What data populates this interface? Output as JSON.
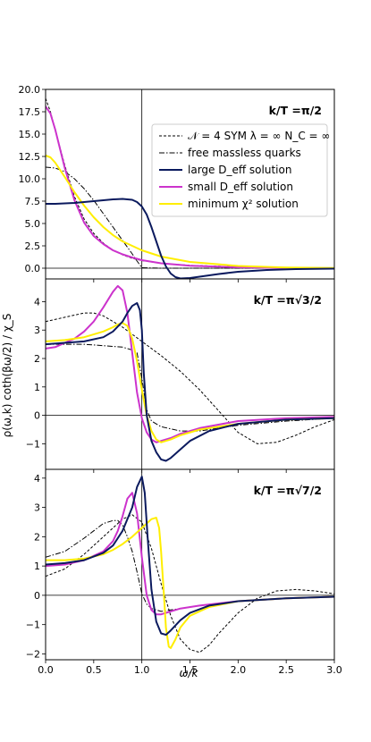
{
  "chart_data": {
    "type": "line",
    "xlabel": "ω/k",
    "ylabel": "ρ(ω,k) coth(βω/2) / χ_S",
    "xlim": [
      0,
      3.0
    ],
    "xticks": [
      "0.0",
      "0.5",
      "1.0",
      "1.5",
      "2.0",
      "2.5",
      "3.0"
    ],
    "vline_x": 1.0,
    "hline_y": 0,
    "legend": {
      "placement": "upper-right of top panel",
      "entries": [
        {
          "label": "𝒩 = 4 SYM λ = ∞ N_C = ∞",
          "color": "#000000",
          "style": "dashed"
        },
        {
          "label": "free massless quarks",
          "color": "#000000",
          "style": "dashdot"
        },
        {
          "label": "large D_eff solution",
          "color": "#0b1a5e",
          "style": "solid"
        },
        {
          "label": "small D_eff solution",
          "color": "#cc33cc",
          "style": "solid"
        },
        {
          "label": "minimum χ² solution",
          "color": "#ffee00",
          "style": "solid"
        }
      ]
    },
    "panels": [
      {
        "title": "k/T =π/2",
        "ylim": [
          -1.2,
          20.0
        ],
        "yticks": [
          0.0,
          2.5,
          5.0,
          7.5,
          10.0,
          12.5,
          15.0,
          17.5,
          20.0
        ],
        "ytick_labels": [
          "0.0",
          "2.5",
          "5.0",
          "7.5",
          "10.0",
          "12.5",
          "15.0",
          "17.5",
          "20.0"
        ],
        "series": [
          {
            "name": "𝒩 = 4 SYM λ = ∞ N_C = ∞",
            "x": [
              0,
              0.05,
              0.1,
              0.2,
              0.3,
              0.4,
              0.5,
              0.6,
              0.7,
              0.8,
              0.9,
              1.0,
              1.2,
              1.5,
              2.0,
              2.5,
              3.0
            ],
            "values": [
              19.0,
              17.5,
              15.5,
              11.5,
              8.0,
              5.5,
              3.9,
              2.8,
              2.0,
              1.5,
              1.1,
              0.85,
              0.55,
              0.32,
              0.15,
              0.07,
              0.04
            ]
          },
          {
            "name": "free massless quarks",
            "x": [
              0,
              0.1,
              0.2,
              0.3,
              0.4,
              0.5,
              0.6,
              0.7,
              0.8,
              0.9,
              0.95,
              1.0,
              1.2,
              1.5,
              2.0,
              2.5,
              3.0
            ],
            "values": [
              11.3,
              11.2,
              10.8,
              10.0,
              8.9,
              7.6,
              6.1,
              4.6,
              3.1,
              1.6,
              0.8,
              0.05,
              0.0,
              0.0,
              0.0,
              0.0,
              0.0
            ]
          },
          {
            "name": "large D_eff solution",
            "x": [
              0,
              0.1,
              0.2,
              0.3,
              0.4,
              0.5,
              0.6,
              0.7,
              0.8,
              0.9,
              0.95,
              1.0,
              1.05,
              1.1,
              1.15,
              1.2,
              1.25,
              1.3,
              1.35,
              1.4,
              1.5,
              1.6,
              1.8,
              2.0,
              2.3,
              2.6,
              3.0
            ],
            "values": [
              7.2,
              7.2,
              7.25,
              7.3,
              7.4,
              7.5,
              7.6,
              7.7,
              7.75,
              7.65,
              7.4,
              6.9,
              6.0,
              4.6,
              3.0,
              1.4,
              0.2,
              -0.6,
              -1.0,
              -1.15,
              -1.1,
              -0.95,
              -0.65,
              -0.4,
              -0.2,
              -0.1,
              -0.05
            ]
          },
          {
            "name": "small D_eff solution",
            "x": [
              0,
              0.05,
              0.1,
              0.2,
              0.3,
              0.4,
              0.5,
              0.6,
              0.7,
              0.8,
              0.9,
              1.0,
              1.2,
              1.5,
              2.0,
              2.5,
              3.0
            ],
            "values": [
              18.1,
              17.3,
              15.5,
              11.2,
              7.6,
              5.1,
              3.6,
              2.7,
              2.0,
              1.55,
              1.2,
              0.9,
              0.55,
              0.28,
              0.1,
              0.02,
              0.0
            ]
          },
          {
            "name": "minimum χ² solution",
            "x": [
              0,
              0.05,
              0.1,
              0.2,
              0.3,
              0.4,
              0.5,
              0.6,
              0.7,
              0.8,
              0.9,
              1.0,
              1.2,
              1.5,
              2.0,
              2.5,
              3.0
            ],
            "values": [
              12.6,
              12.4,
              11.8,
              10.2,
              8.5,
              7.0,
              5.7,
              4.6,
              3.7,
              3.0,
              2.5,
              2.0,
              1.3,
              0.7,
              0.25,
              0.08,
              0.02
            ]
          }
        ]
      },
      {
        "title": "k/T =π√3/2",
        "ylim": [
          -1.9,
          4.8
        ],
        "yticks": [
          -1,
          0,
          1,
          2,
          3,
          4
        ],
        "ytick_labels": [
          "−1",
          "0",
          "1",
          "2",
          "3",
          "4"
        ],
        "series": [
          {
            "name": "𝒩 = 4 SYM λ = ∞ N_C = ∞",
            "x": [
              0,
              0.2,
              0.4,
              0.5,
              0.6,
              0.8,
              1.0,
              1.2,
              1.4,
              1.6,
              1.8,
              2.0,
              2.2,
              2.4,
              2.6,
              2.8,
              3.0
            ],
            "values": [
              3.3,
              3.45,
              3.6,
              3.6,
              3.5,
              3.1,
              2.6,
              2.1,
              1.55,
              0.9,
              0.15,
              -0.6,
              -1.0,
              -0.95,
              -0.7,
              -0.4,
              -0.15
            ]
          },
          {
            "name": "free massless quarks",
            "x": [
              0,
              0.2,
              0.4,
              0.6,
              0.8,
              0.9,
              0.95,
              1.0,
              1.05,
              1.1,
              1.2,
              1.4,
              1.6,
              1.8,
              2.0,
              2.5,
              3.0
            ],
            "values": [
              2.5,
              2.5,
              2.5,
              2.45,
              2.4,
              2.3,
              2.2,
              1.3,
              0.2,
              -0.2,
              -0.4,
              -0.55,
              -0.55,
              -0.45,
              -0.35,
              -0.2,
              -0.1
            ]
          },
          {
            "name": "large D_eff solution",
            "x": [
              0,
              0.2,
              0.4,
              0.6,
              0.7,
              0.8,
              0.85,
              0.9,
              0.95,
              0.98,
              1.0,
              1.02,
              1.05,
              1.1,
              1.15,
              1.2,
              1.25,
              1.3,
              1.4,
              1.5,
              1.7,
              2.0,
              2.5,
              3.0
            ],
            "values": [
              2.5,
              2.55,
              2.6,
              2.75,
              2.95,
              3.3,
              3.6,
              3.85,
              3.95,
              3.7,
              3.0,
              1.5,
              0.0,
              -0.9,
              -1.3,
              -1.55,
              -1.6,
              -1.5,
              -1.2,
              -0.9,
              -0.55,
              -0.3,
              -0.15,
              -0.1
            ]
          },
          {
            "name": "small D_eff solution",
            "x": [
              0,
              0.1,
              0.2,
              0.3,
              0.4,
              0.5,
              0.6,
              0.7,
              0.75,
              0.8,
              0.85,
              0.9,
              0.95,
              1.0,
              1.05,
              1.1,
              1.15,
              1.2,
              1.3,
              1.4,
              1.6,
              2.0,
              2.5,
              3.0
            ],
            "values": [
              2.35,
              2.4,
              2.55,
              2.7,
              2.95,
              3.3,
              3.8,
              4.35,
              4.55,
              4.4,
              3.6,
              2.2,
              0.8,
              -0.1,
              -0.6,
              -0.85,
              -0.95,
              -0.9,
              -0.8,
              -0.65,
              -0.45,
              -0.2,
              -0.1,
              -0.05
            ]
          },
          {
            "name": "minimum χ² solution",
            "x": [
              0,
              0.2,
              0.4,
              0.6,
              0.7,
              0.75,
              0.8,
              0.85,
              0.9,
              0.95,
              1.0,
              1.05,
              1.1,
              1.15,
              1.2,
              1.3,
              1.4,
              1.6,
              2.0,
              2.5,
              3.0
            ],
            "values": [
              2.6,
              2.65,
              2.75,
              2.95,
              3.1,
              3.2,
              3.25,
              3.15,
              2.7,
              1.9,
              0.9,
              0.0,
              -0.55,
              -0.85,
              -0.95,
              -0.85,
              -0.7,
              -0.5,
              -0.3,
              -0.15,
              -0.1
            ]
          }
        ]
      },
      {
        "title": "k/T =π√7/2",
        "ylim": [
          -2.2,
          4.3
        ],
        "yticks": [
          -2,
          -1,
          0,
          1,
          2,
          3,
          4
        ],
        "ytick_labels": [
          "−2",
          "−1",
          "0",
          "1",
          "2",
          "3",
          "4"
        ],
        "series": [
          {
            "name": "𝒩 = 4 SYM λ = ∞ N_C = ∞",
            "x": [
              0,
              0.2,
              0.4,
              0.6,
              0.8,
              0.9,
              1.0,
              1.1,
              1.2,
              1.3,
              1.4,
              1.5,
              1.6,
              1.7,
              1.8,
              2.0,
              2.2,
              2.4,
              2.6,
              2.8,
              3.0
            ],
            "values": [
              0.65,
              0.9,
              1.4,
              2.0,
              2.6,
              2.75,
              2.5,
              1.6,
              0.4,
              -0.7,
              -1.5,
              -1.85,
              -1.95,
              -1.7,
              -1.3,
              -0.6,
              -0.1,
              0.15,
              0.2,
              0.15,
              0.05
            ]
          },
          {
            "name": "free massless quarks",
            "x": [
              0,
              0.2,
              0.4,
              0.5,
              0.6,
              0.7,
              0.75,
              0.8,
              0.85,
              0.9,
              0.95,
              1.0,
              1.05,
              1.1,
              1.2,
              1.4,
              1.6,
              2.0,
              2.5,
              3.0
            ],
            "values": [
              1.3,
              1.5,
              1.95,
              2.2,
              2.45,
              2.55,
              2.55,
              2.4,
              2.0,
              1.5,
              0.8,
              0.05,
              -0.3,
              -0.45,
              -0.55,
              -0.45,
              -0.35,
              -0.2,
              -0.1,
              -0.05
            ]
          },
          {
            "name": "large D_eff solution",
            "x": [
              0,
              0.2,
              0.4,
              0.6,
              0.7,
              0.8,
              0.9,
              0.95,
              1.0,
              1.03,
              1.06,
              1.1,
              1.15,
              1.2,
              1.25,
              1.3,
              1.4,
              1.5,
              1.7,
              2.0,
              2.5,
              3.0
            ],
            "values": [
              1.05,
              1.1,
              1.2,
              1.45,
              1.7,
              2.2,
              3.0,
              3.7,
              4.05,
              3.5,
              2.0,
              0.2,
              -0.9,
              -1.3,
              -1.35,
              -1.2,
              -0.85,
              -0.6,
              -0.35,
              -0.2,
              -0.1,
              -0.05
            ]
          },
          {
            "name": "small D_eff solution",
            "x": [
              0,
              0.2,
              0.4,
              0.6,
              0.7,
              0.75,
              0.8,
              0.85,
              0.9,
              0.95,
              1.0,
              1.05,
              1.1,
              1.15,
              1.2,
              1.3,
              1.4,
              1.6,
              2.0,
              2.5,
              3.0
            ],
            "values": [
              1.0,
              1.05,
              1.2,
              1.5,
              1.85,
              2.2,
              2.7,
              3.3,
              3.5,
              2.8,
              1.3,
              0.0,
              -0.5,
              -0.65,
              -0.65,
              -0.55,
              -0.45,
              -0.35,
              -0.2,
              -0.1,
              -0.05
            ]
          },
          {
            "name": "minimum χ² solution",
            "x": [
              0,
              0.2,
              0.4,
              0.6,
              0.7,
              0.8,
              0.9,
              1.0,
              1.05,
              1.1,
              1.15,
              1.18,
              1.2,
              1.23,
              1.25,
              1.28,
              1.3,
              1.35,
              1.4,
              1.5,
              1.7,
              2.0,
              2.5,
              3.0
            ],
            "values": [
              1.2,
              1.2,
              1.25,
              1.4,
              1.55,
              1.75,
              2.0,
              2.3,
              2.45,
              2.6,
              2.65,
              2.3,
              1.5,
              0.0,
              -1.1,
              -1.75,
              -1.8,
              -1.5,
              -1.1,
              -0.7,
              -0.4,
              -0.2,
              -0.1,
              -0.05
            ]
          }
        ]
      }
    ]
  }
}
